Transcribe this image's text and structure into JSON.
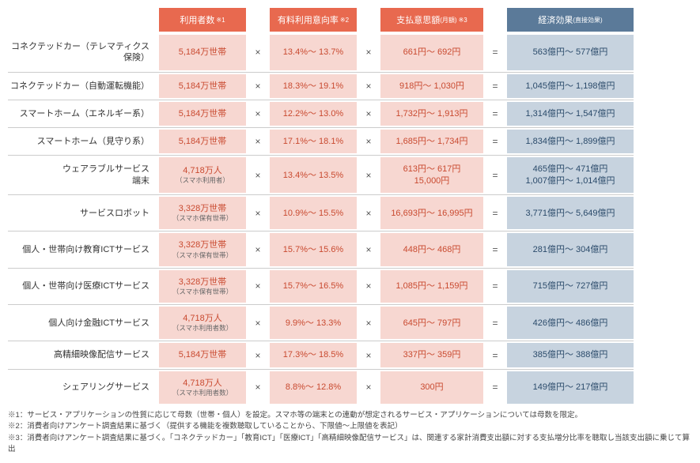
{
  "colors": {
    "headerUsers": "#e8694f",
    "headerRate": "#e8694f",
    "headerPay": "#e8694f",
    "headerEffect": "#5b7a99",
    "cellUsers": "#f7d7d1",
    "cellRate": "#f7d7d1",
    "cellPay": "#f7d7d1",
    "cellEffect": "#c7d3df"
  },
  "headers": {
    "blank": "",
    "users": "利用者数",
    "users_sup": "※1",
    "rate": "有料利用意向率",
    "rate_sup": "※2",
    "pay": "支払意思額",
    "pay_sub": "(月額)",
    "pay_sup": "※3",
    "effect": "経済効果",
    "effect_sub": "(直接効果)"
  },
  "ops": {
    "times": "×",
    "eq": "="
  },
  "rows": [
    {
      "label": "コネクテッドカー（テレマティクス保険）",
      "users": "5,184万世帯",
      "rate": "13.4%～ 13.7%",
      "pay": "661円～ 692円",
      "effect": "563億円～ 577億円"
    },
    {
      "label": "コネクテッドカー（自動運転機能）",
      "users": "5,184万世帯",
      "rate": "18.3%～ 19.1%",
      "pay": "918円～ 1,030円",
      "effect": "1,045億円～ 1,198億円"
    },
    {
      "label": "スマートホーム（エネルギー系）",
      "users": "5,184万世帯",
      "rate": "12.2%～ 13.0%",
      "pay": "1,732円～ 1,913円",
      "effect": "1,314億円～ 1,547億円"
    },
    {
      "label": "スマートホーム（見守り系）",
      "users": "5,184万世帯",
      "rate": "17.1%～ 18.1%",
      "pay": "1,685円～ 1,734円",
      "effect": "1,834億円～ 1,899億円"
    },
    {
      "label": "ウェアラブルサービス",
      "label2": "端末",
      "users": "4,718万人",
      "users_sub": "（スマホ利用者）",
      "rate": "13.4%～ 13.5%",
      "pay": "613円～ 617円",
      "pay2": "15,000円",
      "effect": "465億円～ 471億円",
      "effect2": "1,007億円～ 1,014億円"
    },
    {
      "label": "サービスロボット",
      "users": "3,328万世帯",
      "users_sub": "（スマホ保有世帯）",
      "rate": "10.9%～ 15.5%",
      "pay": "16,693円～ 16,995円",
      "effect": "3,771億円～ 5,649億円"
    },
    {
      "label": "個人・世帯向け教育ICTサービス",
      "users": "3,328万世帯",
      "users_sub": "（スマホ保有世帯）",
      "rate": "15.7%～ 15.6%",
      "pay": "448円～ 468円",
      "effect": "281億円～ 304億円"
    },
    {
      "label": "個人・世帯向け医療ICTサービス",
      "users": "3,328万世帯",
      "users_sub": "（スマホ保有世帯）",
      "rate": "15.7%～ 16.5%",
      "pay": "1,085円～ 1,159円",
      "effect": "715億円～ 727億円"
    },
    {
      "label": "個人向け金融ICTサービス",
      "users": "4,718万人",
      "users_sub": "（スマホ利用者数）",
      "rate": "9.9%～ 13.3%",
      "pay": "645円～ 797円",
      "effect": "426億円～ 486億円"
    },
    {
      "label": "高精細映像配信サービス",
      "users": "5,184万世帯",
      "rate": "17.3%～ 18.5%",
      "pay": "337円～ 359円",
      "effect": "385億円～ 388億円"
    },
    {
      "label": "シェアリングサービス",
      "users": "4,718万人",
      "users_sub": "（スマホ利用者数）",
      "rate": "8.8%～ 12.8%",
      "pay": "300円",
      "effect": "149億円～ 217億円"
    }
  ],
  "notes": {
    "n1": "※1：サービス・アプリケーションの性質に応じて母数（世帯・個人）を設定。スマホ等の端末との連動が想定されるサービス・アプリケーションについては母数を限定。",
    "n2": "※2：消費者向けアンケート調査結果に基づく（提供する機能を複数聴取していることから、下限値～上限値を表記）",
    "n3": "※3：消費者向けアンケート調査結果に基づく。「コネクテッドカー」「教育ICT」「医療ICT」「高精細映像配信サービス」は、関連する家計消費支出額に対する支払増分比率を聴取し当該支出額に乗じて算出"
  }
}
